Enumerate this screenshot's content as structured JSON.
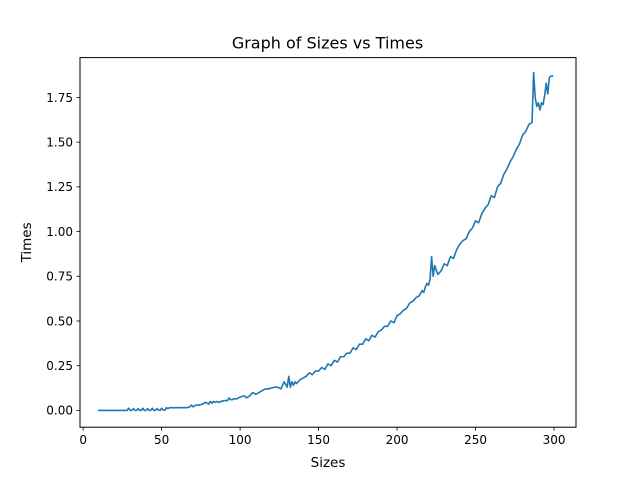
{
  "chart_data": {
    "type": "line",
    "title": "Graph of Sizes vs Times",
    "xlabel": "Sizes",
    "ylabel": "Times",
    "xlim": [
      -2,
      314
    ],
    "ylim": [
      -0.094,
      1.973
    ],
    "xticks": [
      0,
      50,
      100,
      150,
      200,
      250,
      300
    ],
    "xtick_labels": [
      "0",
      "50",
      "100",
      "150",
      "200",
      "250",
      "300"
    ],
    "yticks": [
      0.0,
      0.25,
      0.5,
      0.75,
      1.0,
      1.25,
      1.5,
      1.75
    ],
    "ytick_labels": [
      "0.00",
      "0.25",
      "0.50",
      "0.75",
      "1.00",
      "1.25",
      "1.50",
      "1.75"
    ],
    "grid": false,
    "series": [
      {
        "color": "#1f77b4",
        "x": [
          10,
          20,
          28,
          29,
          30,
          31,
          32,
          33,
          34,
          35,
          36,
          37,
          38,
          39,
          40,
          41,
          42,
          43,
          44,
          45,
          46,
          47,
          48,
          49,
          50,
          51,
          52,
          53,
          54,
          55,
          60,
          66,
          68,
          69,
          70,
          72,
          74,
          76,
          78,
          80,
          81,
          82,
          83,
          84,
          85,
          86,
          88,
          90,
          92,
          93,
          94,
          95,
          96,
          98,
          100,
          102,
          103,
          104,
          106,
          108,
          110,
          112,
          114,
          116,
          118,
          120,
          122,
          124,
          126,
          128,
          130,
          131,
          132,
          133,
          134,
          135,
          136,
          138,
          140,
          142,
          144,
          146,
          148,
          150,
          152,
          154,
          156,
          158,
          160,
          162,
          164,
          166,
          168,
          170,
          172,
          174,
          176,
          178,
          180,
          182,
          184,
          186,
          188,
          190,
          192,
          194,
          196,
          198,
          200,
          202,
          204,
          206,
          208,
          210,
          212,
          214,
          216,
          217,
          218,
          219,
          220,
          221,
          222,
          223,
          224,
          226,
          228,
          230,
          232,
          234,
          236,
          238,
          240,
          242,
          244,
          246,
          248,
          250,
          252,
          254,
          256,
          258,
          260,
          262,
          264,
          266,
          268,
          270,
          272,
          274,
          276,
          278,
          280,
          282,
          284,
          286,
          287,
          288,
          289,
          290,
          291,
          292,
          293,
          294,
          295,
          296,
          297,
          298,
          299
        ],
        "values": [
          0.0,
          0.0,
          0.0,
          0.012,
          0.0,
          0.0,
          0.01,
          0.0,
          0.0,
          0.01,
          0.0,
          0.0,
          0.012,
          0.0,
          0.0,
          0.01,
          0.0,
          0.0,
          0.012,
          0.0,
          0.0,
          0.01,
          0.002,
          0.0,
          0.012,
          0.002,
          0.0,
          0.015,
          0.01,
          0.015,
          0.015,
          0.015,
          0.02,
          0.03,
          0.02,
          0.03,
          0.03,
          0.035,
          0.045,
          0.035,
          0.05,
          0.04,
          0.05,
          0.045,
          0.05,
          0.045,
          0.05,
          0.055,
          0.055,
          0.07,
          0.06,
          0.06,
          0.065,
          0.065,
          0.075,
          0.08,
          0.08,
          0.07,
          0.08,
          0.1,
          0.09,
          0.1,
          0.11,
          0.12,
          0.12,
          0.125,
          0.13,
          0.13,
          0.12,
          0.16,
          0.13,
          0.19,
          0.13,
          0.16,
          0.14,
          0.16,
          0.15,
          0.17,
          0.18,
          0.19,
          0.21,
          0.2,
          0.22,
          0.22,
          0.24,
          0.23,
          0.26,
          0.25,
          0.28,
          0.27,
          0.3,
          0.3,
          0.32,
          0.32,
          0.35,
          0.34,
          0.37,
          0.37,
          0.4,
          0.39,
          0.42,
          0.41,
          0.44,
          0.45,
          0.47,
          0.47,
          0.5,
          0.49,
          0.53,
          0.54,
          0.56,
          0.57,
          0.6,
          0.61,
          0.63,
          0.64,
          0.67,
          0.66,
          0.69,
          0.71,
          0.7,
          0.73,
          0.86,
          0.75,
          0.81,
          0.76,
          0.78,
          0.82,
          0.81,
          0.86,
          0.85,
          0.9,
          0.93,
          0.95,
          0.96,
          1.0,
          1.02,
          1.06,
          1.05,
          1.1,
          1.13,
          1.15,
          1.2,
          1.19,
          1.25,
          1.27,
          1.32,
          1.35,
          1.39,
          1.42,
          1.46,
          1.49,
          1.54,
          1.56,
          1.6,
          1.61,
          1.89,
          1.75,
          1.7,
          1.72,
          1.68,
          1.72,
          1.71,
          1.76,
          1.83,
          1.77,
          1.86,
          1.87,
          1.87
        ]
      }
    ]
  }
}
